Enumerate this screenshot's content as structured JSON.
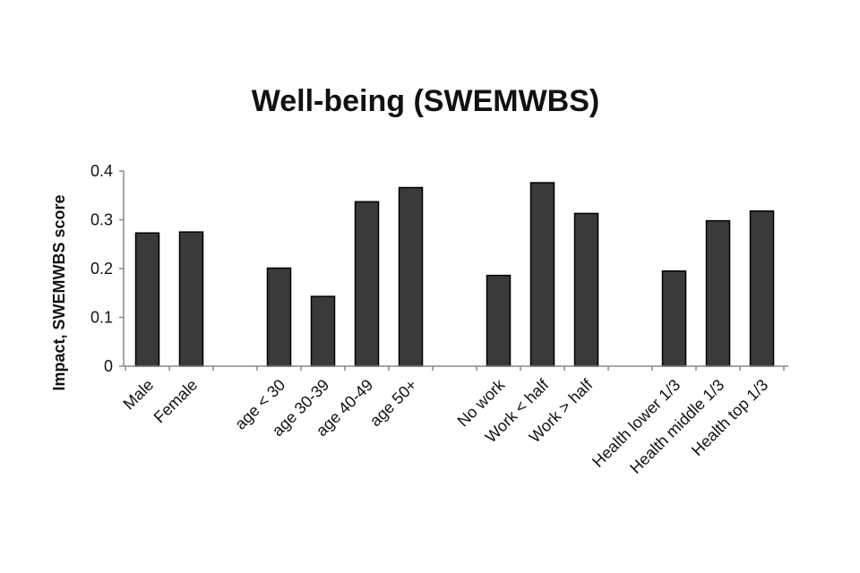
{
  "chart_data": {
    "type": "bar",
    "title": "Well-being (SWEMWBS)",
    "xlabel": "",
    "ylabel": "Impact, SWEMWBS score",
    "ylim": [
      0,
      0.4
    ],
    "yticks": [
      "0",
      "0.1",
      "0.2",
      "0.3",
      "0.4"
    ],
    "ytick_values": [
      0,
      0.1,
      0.2,
      0.3,
      0.4
    ],
    "grid": false,
    "bar_color": "#3a3a3a",
    "groups": [
      {
        "categories": [
          "Male",
          "Female"
        ],
        "values": [
          0.273,
          0.275
        ]
      },
      {
        "categories": [
          "age < 30",
          "age 30-39",
          "age 40-49",
          "age 50+"
        ],
        "values": [
          0.201,
          0.143,
          0.337,
          0.366
        ]
      },
      {
        "categories": [
          "No work",
          "Work < half",
          "Work > half"
        ],
        "values": [
          0.186,
          0.376,
          0.313
        ]
      },
      {
        "categories": [
          "Health lower 1/3",
          "Health middle 1/3",
          "Health top 1/3"
        ],
        "values": [
          0.195,
          0.298,
          0.318
        ]
      }
    ]
  }
}
